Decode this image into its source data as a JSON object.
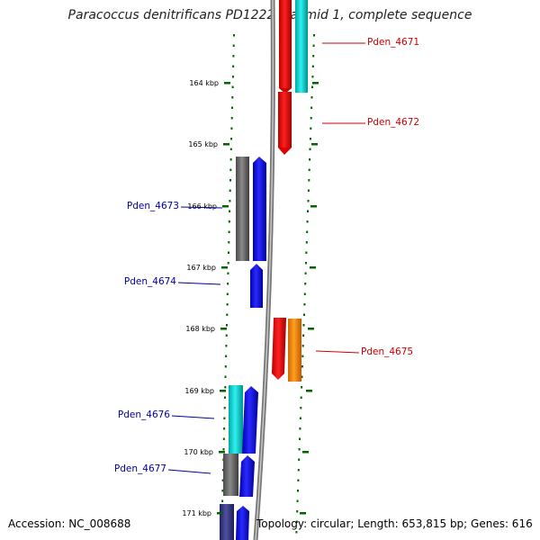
{
  "title": "Paracoccus denitrificans PD1222 plasmid 1, complete sequence",
  "footer": {
    "accession": "Accession: NC_008688",
    "summary": "Topology: circular; Length: 653,815 bp; Genes: 616"
  },
  "ticks": [
    "164 kbp",
    "165 kbp",
    "166 kbp",
    "167 kbp",
    "168 kbp",
    "169 kbp",
    "170 kbp",
    "171 kbp"
  ],
  "gene_labels": [
    {
      "id": "Pden_4671",
      "color": "#cc0000",
      "side": "right"
    },
    {
      "id": "Pden_4672",
      "color": "#cc0000",
      "side": "right"
    },
    {
      "id": "Pden_4673",
      "color": "#000099",
      "side": "left"
    },
    {
      "id": "Pden_4674",
      "color": "#000099",
      "side": "left"
    },
    {
      "id": "Pden_4675",
      "color": "#cc0000",
      "side": "right"
    },
    {
      "id": "Pden_4676",
      "color": "#000099",
      "side": "left"
    },
    {
      "id": "Pden_4677",
      "color": "#000099",
      "side": "left"
    }
  ],
  "colors": {
    "red": "#ee0000",
    "cyan": "#00cccc",
    "blue": "#0000ee",
    "gray": "#666666",
    "orange": "#ff8800",
    "navy": "#333388",
    "tick": "#006600",
    "backbone": "#888888"
  }
}
